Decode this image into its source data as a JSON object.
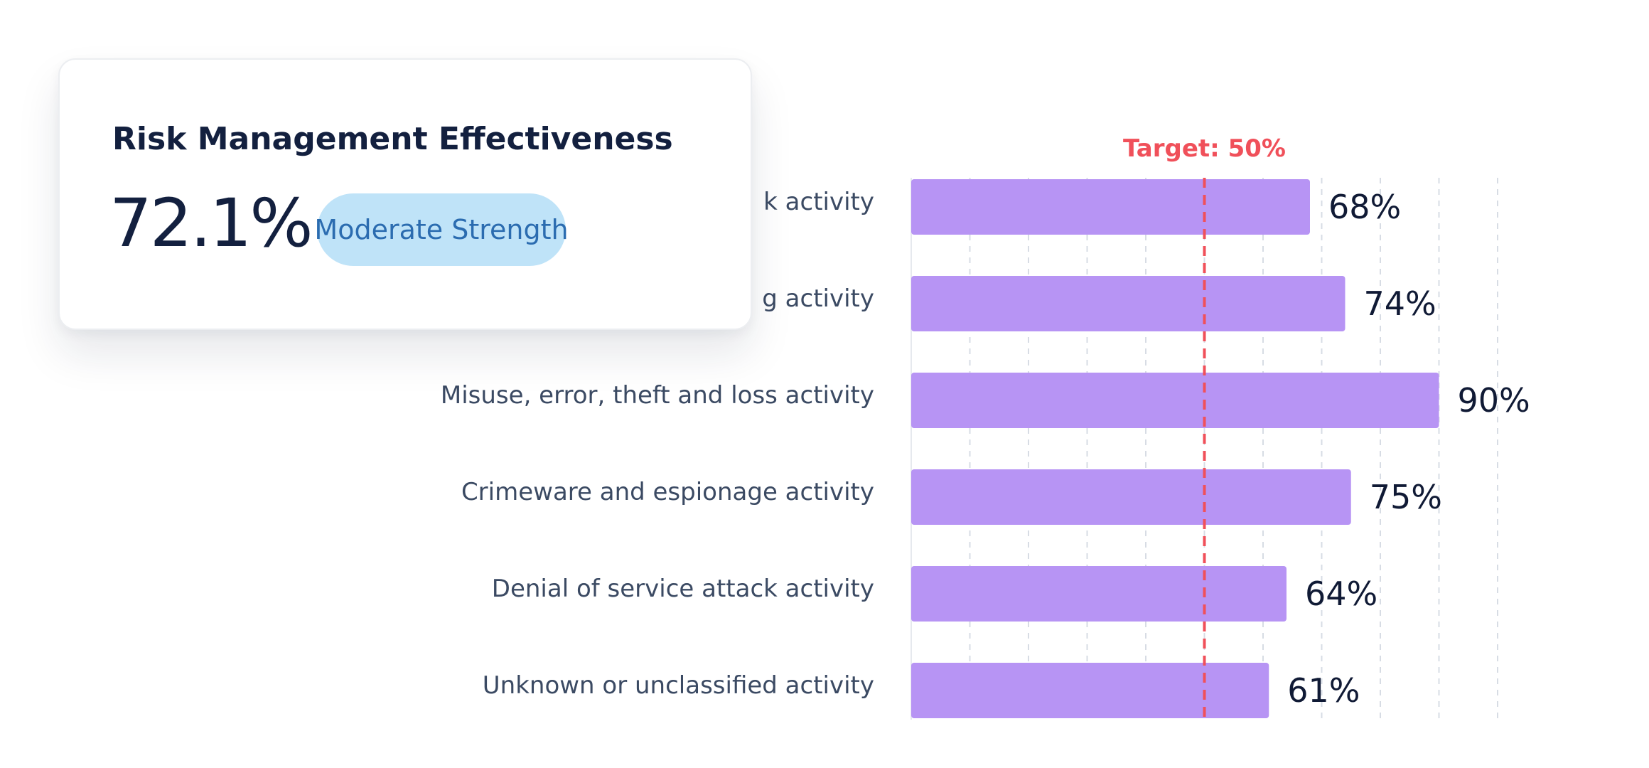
{
  "card": {
    "title": "Risk Management Effectiveness",
    "value": "72.1%",
    "badge": "Moderate Strength"
  },
  "colors": {
    "bar": "#b794f4",
    "target": "#f0505a",
    "grid": "#d7dce4",
    "badge_bg": "#bfe3f8",
    "badge_text": "#2b6cb0"
  },
  "chart_data": {
    "type": "bar",
    "orientation": "horizontal",
    "categories": [
      "k activity",
      "g activity",
      "Misuse, error, theft and loss activity",
      "Crimeware and espionage activity",
      "Denial of service attack activity",
      "Unknown or unclassified activity"
    ],
    "values": [
      68,
      74,
      90,
      75,
      64,
      61
    ],
    "value_labels": [
      "68%",
      "74%",
      "90%",
      "75%",
      "64%",
      "61%"
    ],
    "xlim": [
      0,
      100
    ],
    "grid": true,
    "target": {
      "value": 50,
      "label": "Target: 50%"
    }
  }
}
